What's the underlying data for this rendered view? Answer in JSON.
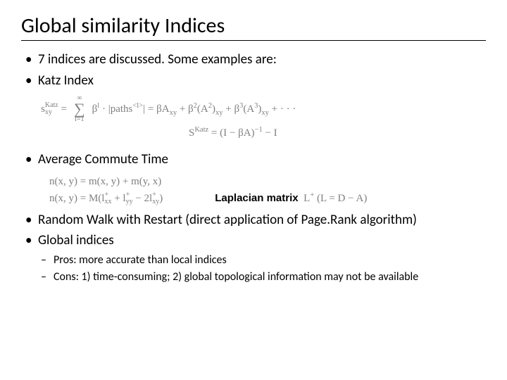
{
  "title": "Global similarity Indices",
  "bullets": {
    "b1": "7 indices are discussed. Some examples are:",
    "b2": "Katz Index",
    "b3": "Average Commute Time",
    "b4": "Random Walk with Restart (direct application of Page.Rank algorithm)",
    "b5": "Global indices",
    "sub1": "Pros: more accurate than local indices",
    "sub2": "Cons: 1) time-consuming; 2) global topological information may not be available"
  },
  "formulas": {
    "katz_lhs_base": "s",
    "katz_lhs_sub": "xy",
    "katz_lhs_sup": "Katz",
    "katz_sum_top": "∞",
    "katz_sum_bot": "l=1",
    "katz_sum_body_a": "β",
    "katz_sum_body_a_sup": "l",
    "katz_sum_body_b": " · |paths",
    "katz_sum_body_b_sup": "<l>",
    "katz_sum_body_c": "| = βA",
    "katz_sub_xy": "xy",
    "katz_t2a": " + β",
    "katz_t2b": "(A",
    "katz_t2c": ")",
    "katz_t3a": " + β",
    "katz_t3b": "(A",
    "katz_t3c": ")",
    "katz_dots": " + · · ·",
    "katz2_lhs": "S",
    "katz2_sup": "Katz",
    "katz2_rhs_a": " = (I − βA)",
    "katz2_rhs_b": " − I",
    "act1": "n(x, y) = m(x, y) + m(y, x)",
    "act2_lhs": "n(x, y) = M(l",
    "act2_mid1": " + l",
    "act2_mid2": " − 2l",
    "act2_rhs": ")",
    "act2_sub_xx": "xx",
    "act2_sub_yy": "yy",
    "act2_sub_xy": "xy",
    "act2_sup_plus": "+",
    "lap_label": "Laplacian matrix",
    "lap_sym": "L",
    "lap_sup": "+",
    "lap_rhs": "   (L = D − A)"
  }
}
